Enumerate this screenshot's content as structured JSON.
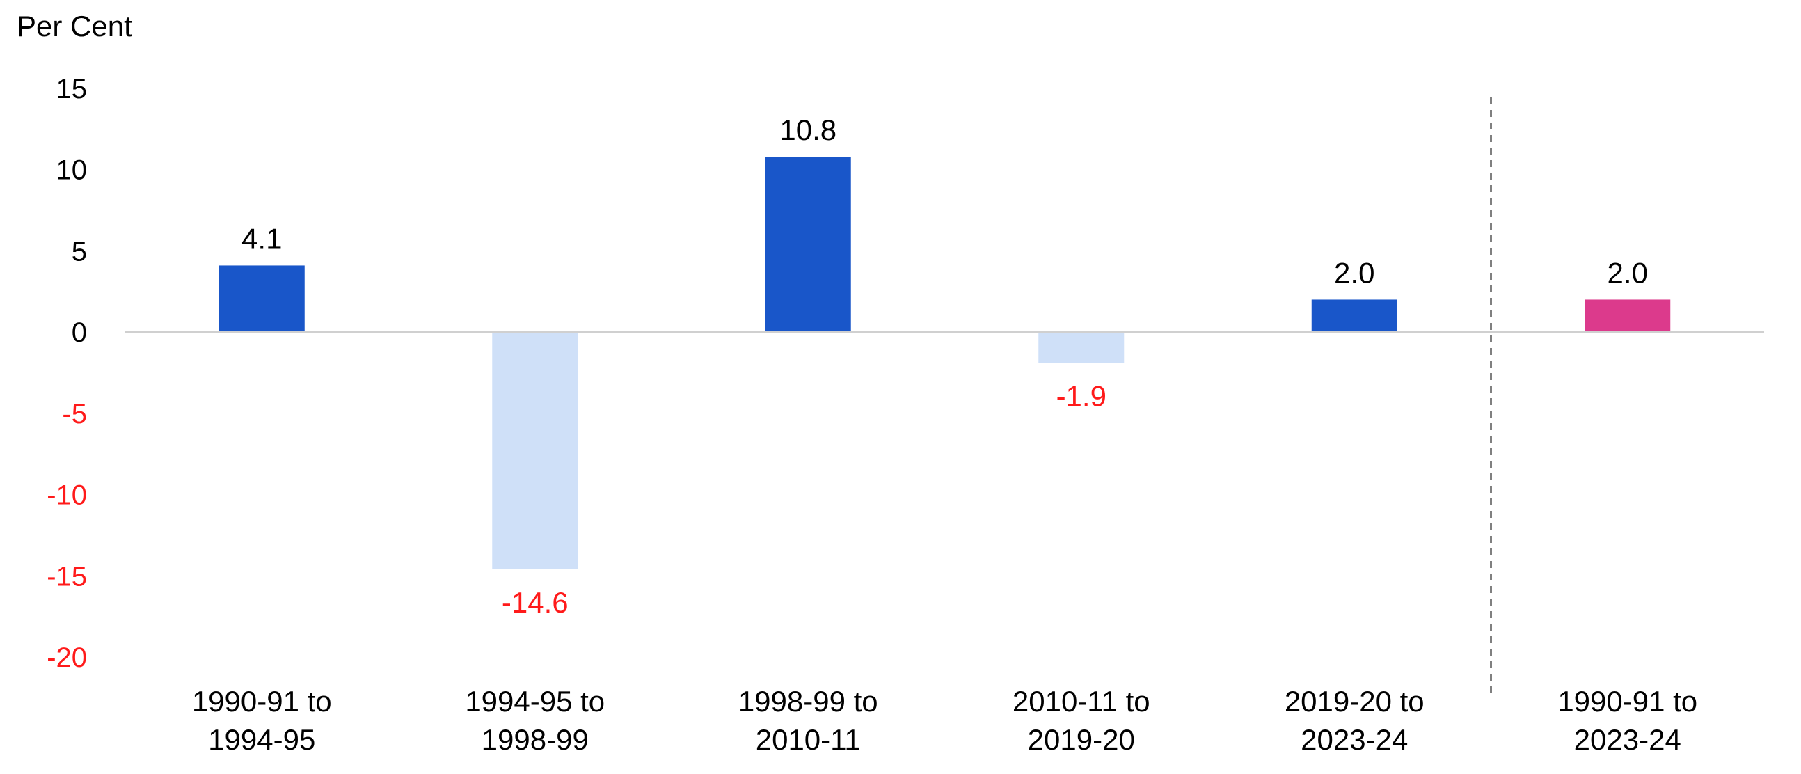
{
  "chart_data": {
    "type": "bar",
    "ylabel": "Per Cent",
    "ylim": [
      -20,
      15
    ],
    "yticks": [
      15,
      10,
      5,
      0,
      -5,
      -10,
      -15,
      -20
    ],
    "categories": [
      [
        "1990-91 to",
        "1994-95"
      ],
      [
        "1994-95 to",
        "1998-99"
      ],
      [
        "1998-99 to",
        "2010-11"
      ],
      [
        "2010-11 to",
        "2019-20"
      ],
      [
        "2019-20 to",
        "2023-24"
      ],
      [
        "1990-91 to",
        "2023-24"
      ]
    ],
    "values": [
      4.1,
      -14.6,
      10.8,
      -1.9,
      2.0,
      2.0
    ],
    "value_labels": [
      "4.1",
      "-14.6",
      "10.8",
      "-1.9",
      "2.0",
      "2.0"
    ],
    "bar_colors": [
      "#1956c9",
      "#cfe0f8",
      "#1956c9",
      "#cfe0f8",
      "#1956c9",
      "#dc3a8c"
    ],
    "negative_label_color": "#ff1a1a",
    "positive_label_color": "#000000",
    "negative_tick_color": "#ff1a1a",
    "positive_tick_color": "#000000",
    "separator": "dashed line between last two categories",
    "grid": false,
    "legend": "none"
  }
}
